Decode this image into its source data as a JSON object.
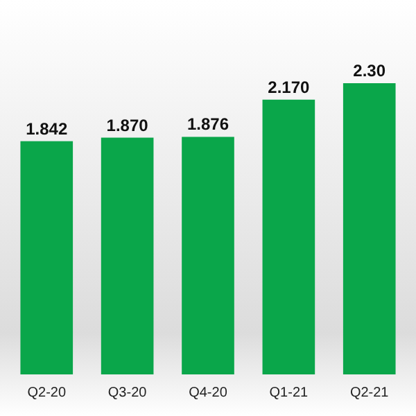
{
  "chart_data": {
    "type": "bar",
    "categories": [
      "Q2-20",
      "Q3-20",
      "Q4-20",
      "Q1-21",
      "Q2-21"
    ],
    "values": [
      1.842,
      1.87,
      1.876,
      2.17,
      2.3
    ],
    "value_labels": [
      "1.842",
      "1.870",
      "1.876",
      "2.170",
      "2.30"
    ],
    "color": "#0aa64a"
  }
}
